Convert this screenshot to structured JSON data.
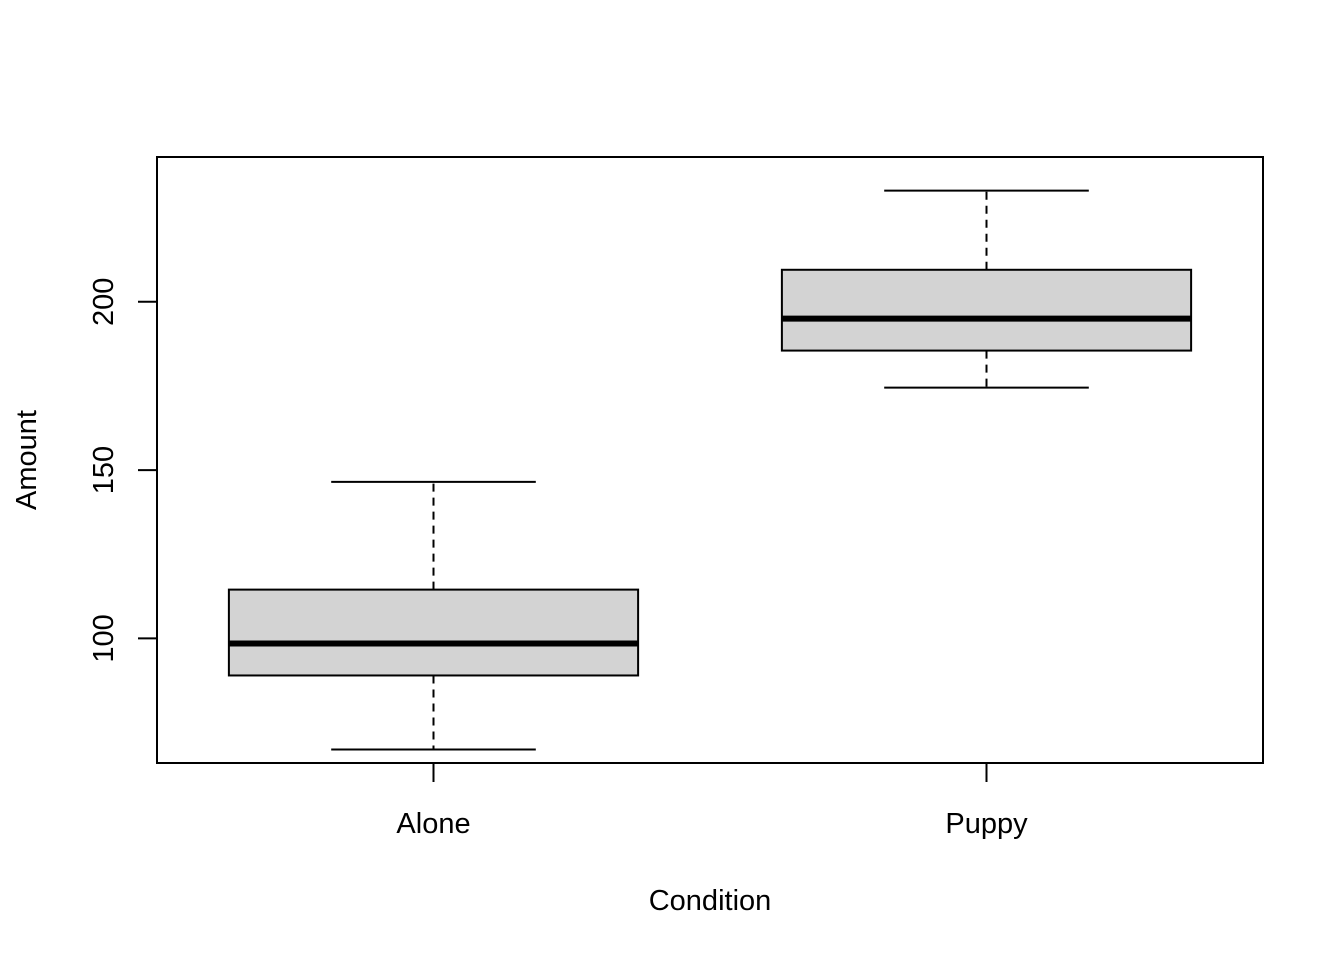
{
  "chart_data": {
    "type": "boxplot",
    "title": "",
    "xlabel": "Condition",
    "ylabel": "Amount",
    "categories": [
      "Alone",
      "Puppy"
    ],
    "boxes": [
      {
        "category": "Alone",
        "whisker_low": 67,
        "q1": 89,
        "median": 98.5,
        "q3": 114.5,
        "whisker_high": 146.5
      },
      {
        "category": "Puppy",
        "whisker_low": 174.5,
        "q1": 185.5,
        "median": 195,
        "q3": 209.5,
        "whisker_high": 233
      }
    ],
    "ylim": [
      63,
      243
    ],
    "yticks": [
      100,
      150,
      200
    ],
    "grid": false,
    "box_fill": "#d3d3d3",
    "line_color": "#000000"
  }
}
